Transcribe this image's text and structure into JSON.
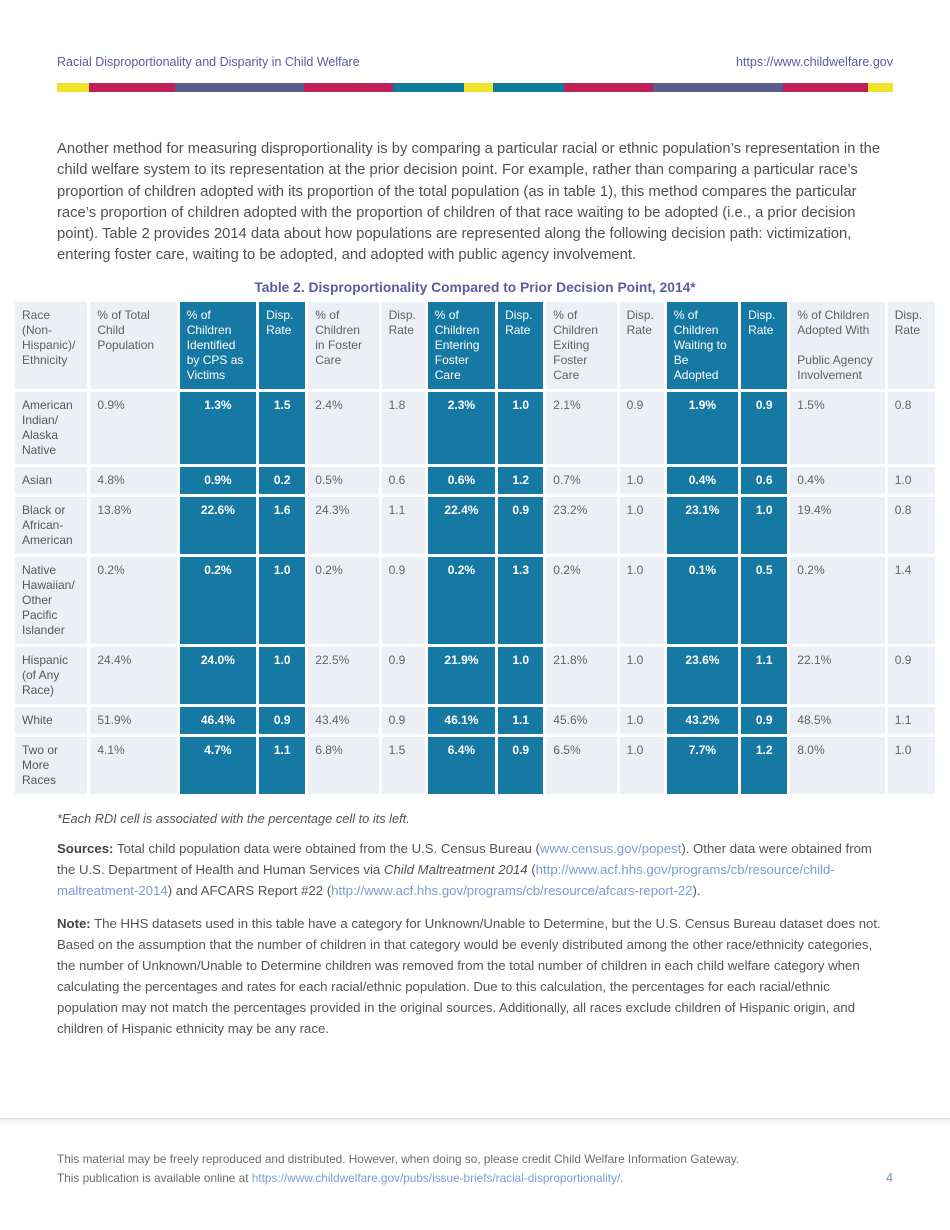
{
  "header": {
    "doc_title": "Racial Disproportionality and Disparity in Child Welfare",
    "site_url": "https://www.childwelfare.gov"
  },
  "stripe": {
    "colors": {
      "yellow": "#f2e42b",
      "crimson": "#c02058",
      "purple": "#5b5c8f",
      "teal": "#107c9c"
    },
    "segments": [
      {
        "color": "yellow",
        "w": 3.8
      },
      {
        "color": "crimson",
        "w": 10.3
      },
      {
        "color": "purple",
        "w": 15.5
      },
      {
        "color": "crimson",
        "w": 10.6
      },
      {
        "color": "teal",
        "w": 8.5
      },
      {
        "color": "yellow",
        "w": 3.5
      },
      {
        "color": "teal",
        "w": 8.4
      },
      {
        "color": "crimson",
        "w": 10.7
      },
      {
        "color": "purple",
        "w": 15.6
      },
      {
        "color": "crimson",
        "w": 10.1
      },
      {
        "color": "yellow",
        "w": 3.0
      }
    ]
  },
  "intro_paragraph": "Another method for measuring disproportionality is by comparing a particular racial or ethnic population’s representation in the child welfare system to its representation at the prior decision point. For example, rather than comparing a particular race’s proportion of children adopted with its proportion of the total population (as in table 1), this method compares the particular race’s proportion of children adopted with the proportion of children of that race waiting to be adopted (i.e., a prior decision point). Table 2 provides 2014 data about how populations are represented along the following decision path: victimization, entering foster care, waiting to be adopted, and adopted with public agency involvement.",
  "table": {
    "title": "Table 2. Disproportionality Compared to Prior Decision Point, 2014*",
    "accent_color": "#1679a4",
    "light_color": "#edeff6",
    "columns": [
      {
        "label": "Race (Non-Hispanic)/Ethnicity",
        "highlight": false
      },
      {
        "label": "% of Total Child Population",
        "highlight": false
      },
      {
        "label": "% of Children Identified by CPS as Victims",
        "highlight": true
      },
      {
        "label": "Disp. Rate",
        "highlight": true
      },
      {
        "label": "% of Children in Foster Care",
        "highlight": false
      },
      {
        "label": "Disp. Rate",
        "highlight": false
      },
      {
        "label": "% of Children Entering Foster Care",
        "highlight": true
      },
      {
        "label": "Disp. Rate",
        "highlight": true
      },
      {
        "label": "% of Children Exiting Foster Care",
        "highlight": false
      },
      {
        "label": "Disp. Rate",
        "highlight": false
      },
      {
        "label": "% of Children Waiting to Be Adopted",
        "highlight": true
      },
      {
        "label": "Disp. Rate",
        "highlight": true
      },
      {
        "label": "% of Children Adopted With\n\nPublic Agency Involvement",
        "highlight": false
      },
      {
        "label": "Disp. Rate",
        "highlight": false
      }
    ],
    "rows": [
      {
        "race": "American Indian/Alaska Native",
        "values": [
          "0.9%",
          "1.3%",
          "1.5",
          "2.4%",
          "1.8",
          "2.3%",
          "1.0",
          "2.1%",
          "0.9",
          "1.9%",
          "0.9",
          "1.5%",
          "0.8"
        ]
      },
      {
        "race": "Asian",
        "values": [
          "4.8%",
          "0.9%",
          "0.2",
          "0.5%",
          "0.6",
          "0.6%",
          "1.2",
          "0.7%",
          "1.0",
          "0.4%",
          "0.6",
          "0.4%",
          "1.0"
        ]
      },
      {
        "race": "Black or African-American",
        "values": [
          "13.8%",
          "22.6%",
          "1.6",
          "24.3%",
          "1.1",
          "22.4%",
          "0.9",
          "23.2%",
          "1.0",
          "23.1%",
          "1.0",
          "19.4%",
          "0.8"
        ]
      },
      {
        "race": "Native Hawaiian/Other Pacific Islander",
        "values": [
          "0.2%",
          "0.2%",
          "1.0",
          "0.2%",
          "0.9",
          "0.2%",
          "1.3",
          "0.2%",
          "1.0",
          "0.1%",
          "0.5",
          "0.2%",
          "1.4"
        ]
      },
      {
        "race": "Hispanic (of Any Race)",
        "values": [
          "24.4%",
          "24.0%",
          "1.0",
          "22.5%",
          "0.9",
          "21.9%",
          "1.0",
          "21.8%",
          "1.0",
          "23.6%",
          "1.1",
          "22.1%",
          "0.9"
        ]
      },
      {
        "race": "White",
        "values": [
          "51.9%",
          "46.4%",
          "0.9",
          "43.4%",
          "0.9",
          "46.1%",
          "1.1",
          "45.6%",
          "1.0",
          "43.2%",
          "0.9",
          "48.5%",
          "1.1"
        ]
      },
      {
        "race": "Two or More Races",
        "values": [
          "4.1%",
          "4.7%",
          "1.1",
          "6.8%",
          "1.5",
          "6.4%",
          "0.9",
          "6.5%",
          "1.0",
          "7.7%",
          "1.2",
          "8.0%",
          "1.0"
        ]
      }
    ],
    "footnote": "*Each RDI cell is associated with the percentage cell to its left."
  },
  "sources": {
    "label": "Sources:",
    "segments": [
      {
        "text": " Total child population data were obtained from the U.S. Census Bureau (",
        "style": "plain"
      },
      {
        "text": "www.census.gov/popest",
        "style": "link"
      },
      {
        "text": "). Other data were obtained from the U.S. Department of Health and Human Services via ",
        "style": "plain"
      },
      {
        "text": "Child Maltreatment 2014",
        "style": "italic"
      },
      {
        "text": " (",
        "style": "plain"
      },
      {
        "text": "http://www.acf.hhs.gov/programs/cb/resource/child-maltreatment-2014",
        "style": "link"
      },
      {
        "text": ") and AFCARS Report #22 (",
        "style": "plain"
      },
      {
        "text": "http://www.acf.hhs.gov/programs/cb/resource/afcars-report-22",
        "style": "link"
      },
      {
        "text": ").",
        "style": "plain"
      }
    ]
  },
  "note": {
    "label": "Note:",
    "text": " The HHS datasets used in this table have a category for Unknown/Unable to Determine, but the U.S. Census Bureau dataset does not. Based on the assumption that the number of children in that category would be evenly distributed among the other race/ethnicity categories, the number of Unknown/Unable to Determine children was removed from the total number of children in each child welfare category when calculating the percentages and rates for each racial/ethnic population. Due to this calculation, the percentages for each racial/ethnic population may not match the percentages provided in the original sources. Additionally, all races exclude children of Hispanic origin, and children of Hispanic ethnicity may be any race."
  },
  "footer": {
    "line1": "This material may be freely reproduced and distributed. However, when doing so, please credit Child Welfare Information Gateway.",
    "line2_prefix": "This publication is available online at ",
    "line2_link": "https://www.childwelfare.gov/pubs/issue-briefs/racial-disproportionality/",
    "line2_suffix": ".",
    "page_number": "4"
  }
}
